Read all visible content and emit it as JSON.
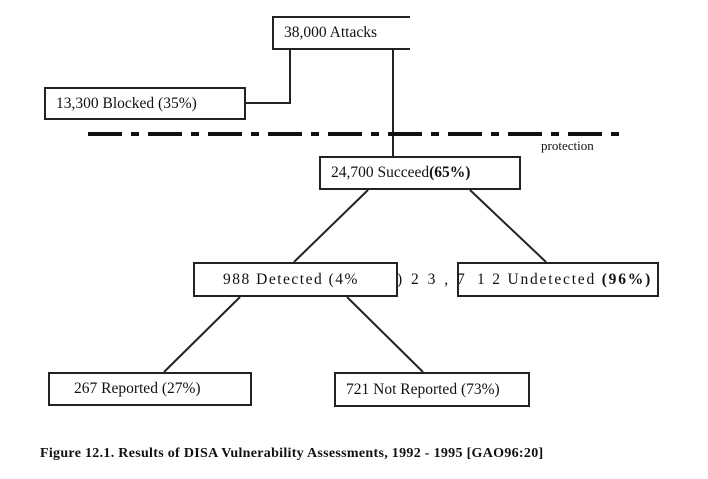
{
  "nodes": {
    "attacks": "38,000  Attacks",
    "blocked": "13,300  Blocked (35%)",
    "succeed_main": "24,700 Succeed ",
    "succeed_pct": "(65%)",
    "detected": "988 Detected  (4%",
    "detected_overflow": ")  2 3 , 7",
    "undetected_main": "1 2  Undetected ",
    "undetected_pct": "(96%)",
    "reported": "267 Reported (27%)",
    "not_reported": "721 Not Reported (73%)"
  },
  "protection_label": "protection",
  "caption": {
    "text": "Figure 12.1. Results of DISA Vulnerability Assessments, 1992 - 1995 ",
    "ref": "[GAO96:20]"
  }
}
